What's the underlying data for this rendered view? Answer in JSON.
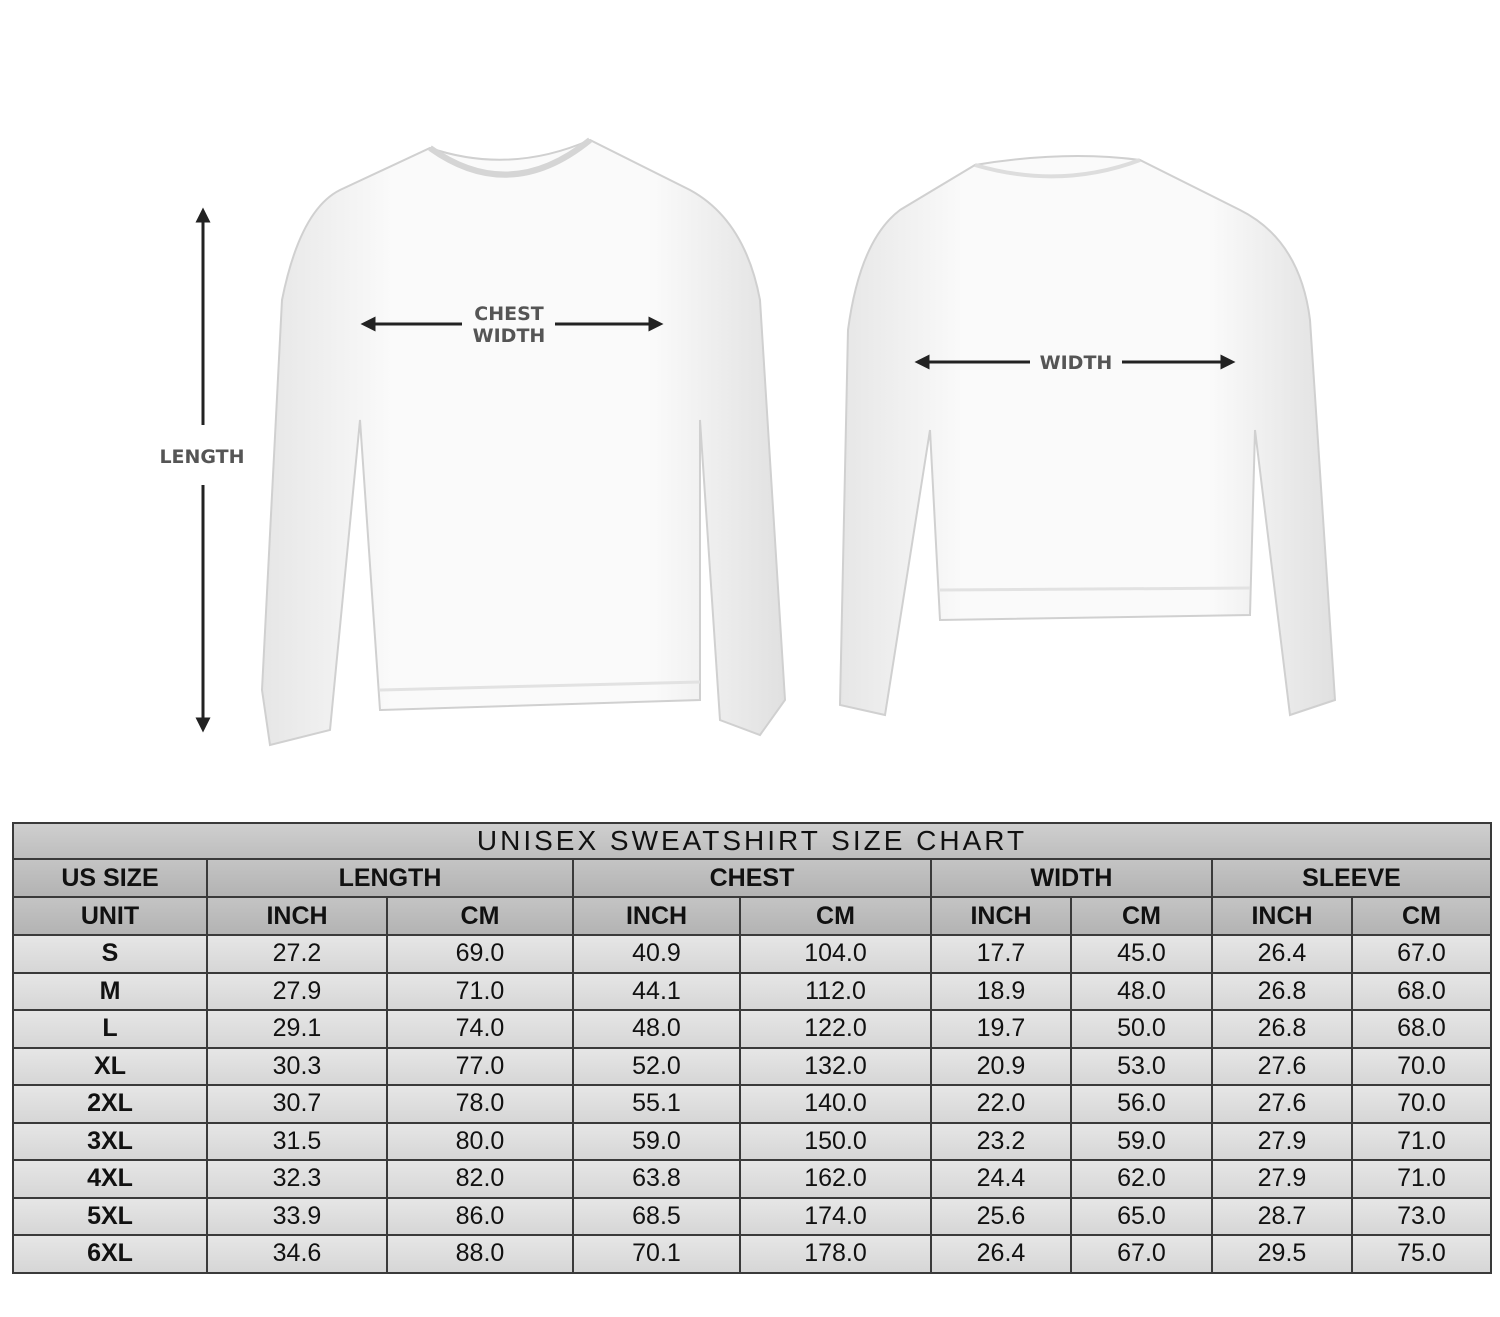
{
  "illustration": {
    "front_labels": {
      "length": "LENGTH",
      "chest_line1": "CHEST",
      "chest_line2": "WIDTH"
    },
    "back_labels": {
      "width": "WIDTH"
    }
  },
  "size_chart": {
    "title": "UNISEX SWEATSHIRT SIZE CHART",
    "groups": [
      "US SIZE",
      "LENGTH",
      "CHEST",
      "WIDTH",
      "SLEEVE"
    ],
    "units": [
      "UNIT",
      "INCH",
      "CM",
      "INCH",
      "CM",
      "INCH",
      "CM",
      "INCH",
      "CM"
    ],
    "rows": [
      [
        "S",
        "27.2",
        "69.0",
        "40.9",
        "104.0",
        "17.7",
        "45.0",
        "26.4",
        "67.0"
      ],
      [
        "M",
        "27.9",
        "71.0",
        "44.1",
        "112.0",
        "18.9",
        "48.0",
        "26.8",
        "68.0"
      ],
      [
        "L",
        "29.1",
        "74.0",
        "48.0",
        "122.0",
        "19.7",
        "50.0",
        "26.8",
        "68.0"
      ],
      [
        "XL",
        "30.3",
        "77.0",
        "52.0",
        "132.0",
        "20.9",
        "53.0",
        "27.6",
        "70.0"
      ],
      [
        "2XL",
        "30.7",
        "78.0",
        "55.1",
        "140.0",
        "22.0",
        "56.0",
        "27.6",
        "70.0"
      ],
      [
        "3XL",
        "31.5",
        "80.0",
        "59.0",
        "150.0",
        "23.2",
        "59.0",
        "27.9",
        "71.0"
      ],
      [
        "4XL",
        "32.3",
        "82.0",
        "63.8",
        "162.0",
        "24.4",
        "62.0",
        "27.9",
        "71.0"
      ],
      [
        "5XL",
        "33.9",
        "86.0",
        "68.5",
        "174.0",
        "25.6",
        "65.0",
        "28.7",
        "73.0"
      ],
      [
        "6XL",
        "34.6",
        "88.0",
        "70.1",
        "178.0",
        "26.4",
        "67.0",
        "29.5",
        "75.0"
      ]
    ]
  }
}
